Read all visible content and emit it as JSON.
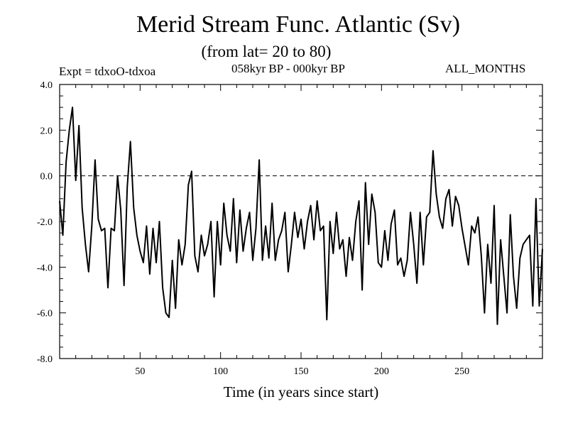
{
  "chart_data": {
    "type": "line",
    "title": "Merid Stream Func. Atlantic (Sv)",
    "subtitle": "(from lat= 20 to 80)",
    "annotations": {
      "left": "Expt = tdxoO-tdxoa",
      "center": "058kyr BP - 000kyr BP",
      "right": "ALL_MONTHS"
    },
    "xlabel": "Time (in years since start)",
    "ylabel": "",
    "xlim": [
      0,
      300
    ],
    "ylim": [
      -8.0,
      4.0
    ],
    "xticks": [
      50,
      100,
      150,
      200,
      250
    ],
    "xtick_labels": [
      "50",
      "100",
      "150",
      "200",
      "250"
    ],
    "yticks": [
      4.0,
      2.0,
      0.0,
      -2.0,
      -4.0,
      -6.0,
      -8.0
    ],
    "ytick_labels": [
      "4.0",
      "2.0",
      "0.0",
      "-2.0",
      "-4.0",
      "-6.0",
      "-8.0"
    ],
    "reference_line": {
      "y": 0.0,
      "style": "dashed"
    },
    "grid": false,
    "series": [
      {
        "x": [
          0,
          2,
          4,
          6,
          8,
          10,
          12,
          14,
          16,
          18,
          20,
          22,
          24,
          26,
          28,
          30,
          32,
          34,
          36,
          38,
          40,
          42,
          44,
          46,
          48,
          50,
          52,
          54,
          56,
          58,
          60,
          62,
          64,
          66,
          68,
          70,
          72,
          74,
          76,
          78,
          80,
          82,
          84,
          86,
          88,
          90,
          92,
          94,
          96,
          98,
          100,
          102,
          104,
          106,
          108,
          110,
          112,
          114,
          116,
          118,
          120,
          122,
          124,
          126,
          128,
          130,
          132,
          134,
          136,
          138,
          140,
          142,
          144,
          146,
          148,
          150,
          152,
          154,
          156,
          158,
          160,
          162,
          164,
          166,
          168,
          170,
          172,
          174,
          176,
          178,
          180,
          182,
          184,
          186,
          188,
          190,
          192,
          194,
          196,
          198,
          200,
          202,
          204,
          206,
          208,
          210,
          212,
          214,
          216,
          218,
          220,
          222,
          224,
          226,
          228,
          230,
          232,
          234,
          236,
          238,
          240,
          242,
          244,
          246,
          248,
          250,
          252,
          254,
          256,
          258,
          260,
          262,
          264,
          266,
          268,
          270,
          272,
          274,
          276,
          278,
          280,
          282,
          284,
          286,
          288,
          290,
          292,
          294,
          296,
          298,
          300
        ],
        "values": [
          -1.1,
          -2.6,
          0.6,
          2.0,
          3.0,
          -0.2,
          2.2,
          -1.4,
          -3.0,
          -4.2,
          -2.2,
          0.7,
          -1.9,
          -2.4,
          -2.3,
          -4.9,
          -2.3,
          -2.4,
          0.0,
          -1.5,
          -4.8,
          -0.5,
          1.5,
          -1.4,
          -2.6,
          -3.3,
          -3.8,
          -2.2,
          -4.3,
          -2.3,
          -3.8,
          -2.0,
          -4.9,
          -6.0,
          -6.2,
          -3.7,
          -5.8,
          -2.8,
          -3.9,
          -3.0,
          -0.4,
          0.2,
          -3.5,
          -4.2,
          -2.6,
          -3.5,
          -3.0,
          -2.0,
          -5.3,
          -2.0,
          -3.9,
          -1.2,
          -2.6,
          -3.3,
          -1.0,
          -3.8,
          -1.5,
          -3.3,
          -2.3,
          -1.6,
          -3.7,
          -2.3,
          0.7,
          -3.7,
          -2.2,
          -3.6,
          -1.2,
          -3.7,
          -2.8,
          -2.4,
          -1.6,
          -4.2,
          -3.0,
          -1.6,
          -2.7,
          -1.9,
          -3.2,
          -2.0,
          -1.3,
          -2.8,
          -1.1,
          -2.4,
          -2.2,
          -6.3,
          -2.0,
          -3.4,
          -1.6,
          -3.2,
          -2.8,
          -4.4,
          -2.7,
          -3.7,
          -2.0,
          -1.1,
          -5.0,
          -0.3,
          -3.0,
          -0.8,
          -1.6,
          -3.8,
          -4.0,
          -2.4,
          -3.7,
          -2.1,
          -1.5,
          -3.9,
          -3.6,
          -4.4,
          -3.7,
          -1.6,
          -3.0,
          -4.7,
          -1.6,
          -3.9,
          -1.8,
          -1.6,
          1.1,
          -0.8,
          -1.8,
          -2.3,
          -1.0,
          -0.6,
          -2.2,
          -0.9,
          -1.3,
          -2.3,
          -3.1,
          -3.9,
          -2.2,
          -2.5,
          -1.8,
          -3.5,
          -6.0,
          -3.0,
          -4.7,
          -1.3,
          -6.5,
          -2.8,
          -4.4,
          -6.0,
          -1.7,
          -4.4,
          -5.8,
          -3.6,
          -3.0,
          -2.8,
          -2.6,
          -5.7,
          -1.0,
          -5.7,
          -3.2
        ]
      }
    ]
  }
}
